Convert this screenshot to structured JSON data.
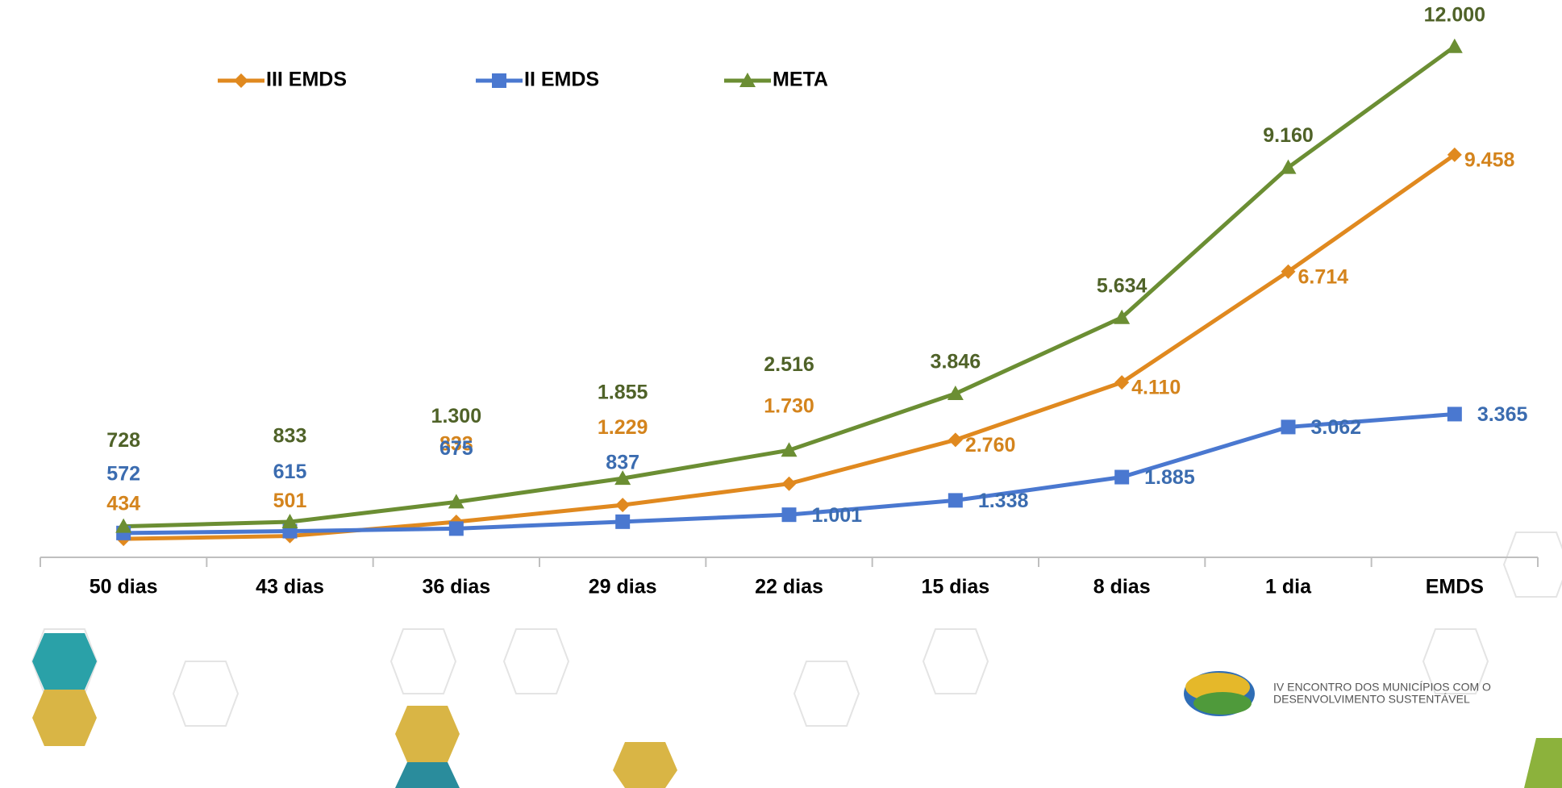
{
  "chart_data": {
    "type": "line",
    "categories": [
      "50 dias",
      "43 dias",
      "36 dias",
      "29 dias",
      "22 dias",
      "15 dias",
      "8 dias",
      "1 dia",
      "EMDS"
    ],
    "series": [
      {
        "name": "III EMDS",
        "color": "#e0891f",
        "marker": "diamond",
        "values": [
          434,
          501,
          833,
          1229,
          1730,
          2760,
          4110,
          6714,
          9458
        ],
        "value_labels": [
          "434",
          "501",
          "833",
          "1.229",
          "1.730",
          "2.760",
          "4.110",
          "6.714",
          "9.458"
        ]
      },
      {
        "name": "II EMDS",
        "color": "#4a78d0",
        "marker": "square",
        "values": [
          572,
          615,
          675,
          837,
          1001,
          1338,
          1885,
          3062,
          3365
        ],
        "value_labels": [
          "572",
          "615",
          "675",
          "837",
          "1.001",
          "1.338",
          "1.885",
          "3.062",
          "3.365"
        ]
      },
      {
        "name": "META",
        "color": "#6b8e33",
        "marker": "triangle",
        "values": [
          728,
          833,
          1300,
          1855,
          2516,
          3846,
          5634,
          9160,
          12000
        ],
        "value_labels": [
          "728",
          "833",
          "1.300",
          "1.855",
          "2.516",
          "3.846",
          "5.634",
          "9.160",
          "12.000"
        ]
      }
    ],
    "ylim": [
      0,
      13000
    ],
    "grid": false,
    "legend": "top-left",
    "annotations": [
      "IV ENCONTRO DOS MUNICÍPIOS COM O",
      "DESENVOLVIMENTO SUSTENTÁVEL"
    ]
  }
}
